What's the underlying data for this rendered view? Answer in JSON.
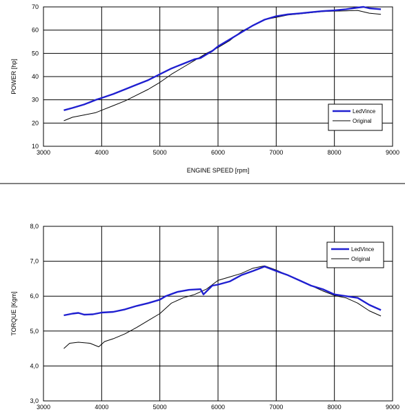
{
  "chart_data": [
    {
      "type": "line",
      "ylabel": "POWER [hp]",
      "xlabel": "ENGINE SPEED [rpm]",
      "xlim": [
        3000,
        9000
      ],
      "ylim": [
        10,
        70
      ],
      "x_ticks": [
        "3000",
        "4000",
        "5000",
        "6000",
        "7000",
        "8000",
        "9000"
      ],
      "y_ticks": [
        "10",
        "20",
        "30",
        "40",
        "50",
        "60",
        "70"
      ],
      "legend_position": "bottom-right",
      "grid": true,
      "series": [
        {
          "name": "LedVince",
          "color": "#1f1fd0",
          "points": [
            [
              3350,
              25.5
            ],
            [
              3500,
              26.5
            ],
            [
              3700,
              28
            ],
            [
              3900,
              30
            ],
            [
              4000,
              30.8
            ],
            [
              4200,
              32.5
            ],
            [
              4400,
              34.5
            ],
            [
              4600,
              36.5
            ],
            [
              4800,
              38.5
            ],
            [
              5000,
              41
            ],
            [
              5200,
              43.5
            ],
            [
              5400,
              45.5
            ],
            [
              5600,
              47.5
            ],
            [
              5700,
              48
            ],
            [
              5800,
              49.5
            ],
            [
              5900,
              51
            ],
            [
              6000,
              53
            ],
            [
              6200,
              56
            ],
            [
              6400,
              59
            ],
            [
              6600,
              62
            ],
            [
              6800,
              64.5
            ],
            [
              7000,
              66
            ],
            [
              7200,
              66.8
            ],
            [
              7400,
              67.2
            ],
            [
              7600,
              67.7
            ],
            [
              7800,
              68.2
            ],
            [
              8000,
              68.5
            ],
            [
              8200,
              69
            ],
            [
              8400,
              69.7
            ],
            [
              8500,
              70
            ],
            [
              8600,
              69.4
            ],
            [
              8800,
              69
            ]
          ]
        },
        {
          "name": "Original",
          "color": "#000000",
          "points": [
            [
              3350,
              21
            ],
            [
              3500,
              22.5
            ],
            [
              3700,
              23.5
            ],
            [
              3900,
              24.5
            ],
            [
              4000,
              25.5
            ],
            [
              4200,
              27.5
            ],
            [
              4400,
              29.5
            ],
            [
              4600,
              32
            ],
            [
              4800,
              34.5
            ],
            [
              5000,
              37.5
            ],
            [
              5200,
              41
            ],
            [
              5400,
              44
            ],
            [
              5600,
              47
            ],
            [
              5800,
              50
            ],
            [
              6000,
              52.5
            ],
            [
              6200,
              55.5
            ],
            [
              6400,
              59.5
            ],
            [
              6600,
              62
            ],
            [
              6800,
              64.5
            ],
            [
              7000,
              65.5
            ],
            [
              7200,
              66.5
            ],
            [
              7400,
              67
            ],
            [
              7600,
              67.5
            ],
            [
              7800,
              68
            ],
            [
              8000,
              68.2
            ],
            [
              8200,
              68.3
            ],
            [
              8400,
              68.5
            ],
            [
              8600,
              67.3
            ],
            [
              8800,
              66.8
            ]
          ]
        }
      ]
    },
    {
      "type": "line",
      "ylabel": "TORQUE [Kgm]",
      "xlabel": "",
      "xlim": [
        3000,
        9000
      ],
      "ylim": [
        3.0,
        8.0
      ],
      "x_ticks": [
        "3000",
        "4000",
        "5000",
        "6000",
        "7000",
        "8000",
        "9000"
      ],
      "y_ticks": [
        "3,0",
        "4,0",
        "5,0",
        "6,0",
        "7,0",
        "8,0"
      ],
      "legend_position": "top-right",
      "grid": true,
      "series": [
        {
          "name": "LedVince",
          "color": "#1f1fd0",
          "points": [
            [
              3350,
              5.45
            ],
            [
              3500,
              5.5
            ],
            [
              3600,
              5.52
            ],
            [
              3700,
              5.47
            ],
            [
              3850,
              5.48
            ],
            [
              4000,
              5.53
            ],
            [
              4200,
              5.55
            ],
            [
              4400,
              5.62
            ],
            [
              4600,
              5.72
            ],
            [
              4800,
              5.8
            ],
            [
              5000,
              5.9
            ],
            [
              5100,
              6.0
            ],
            [
              5300,
              6.12
            ],
            [
              5500,
              6.18
            ],
            [
              5700,
              6.2
            ],
            [
              5750,
              6.05
            ],
            [
              5900,
              6.3
            ],
            [
              6000,
              6.33
            ],
            [
              6200,
              6.42
            ],
            [
              6400,
              6.6
            ],
            [
              6600,
              6.72
            ],
            [
              6800,
              6.85
            ],
            [
              7000,
              6.72
            ],
            [
              7200,
              6.6
            ],
            [
              7400,
              6.45
            ],
            [
              7600,
              6.3
            ],
            [
              7800,
              6.2
            ],
            [
              8000,
              6.05
            ],
            [
              8200,
              6.0
            ],
            [
              8400,
              5.95
            ],
            [
              8600,
              5.75
            ],
            [
              8800,
              5.6
            ]
          ]
        },
        {
          "name": "Original",
          "color": "#000000",
          "points": [
            [
              3350,
              4.5
            ],
            [
              3450,
              4.65
            ],
            [
              3600,
              4.68
            ],
            [
              3800,
              4.65
            ],
            [
              3950,
              4.55
            ],
            [
              4050,
              4.7
            ],
            [
              4200,
              4.78
            ],
            [
              4400,
              4.92
            ],
            [
              4600,
              5.1
            ],
            [
              4800,
              5.3
            ],
            [
              5000,
              5.5
            ],
            [
              5200,
              5.8
            ],
            [
              5400,
              5.95
            ],
            [
              5600,
              6.05
            ],
            [
              5800,
              6.2
            ],
            [
              6000,
              6.45
            ],
            [
              6200,
              6.55
            ],
            [
              6400,
              6.65
            ],
            [
              6600,
              6.8
            ],
            [
              6800,
              6.87
            ],
            [
              7000,
              6.75
            ],
            [
              7200,
              6.6
            ],
            [
              7400,
              6.45
            ],
            [
              7600,
              6.3
            ],
            [
              7800,
              6.15
            ],
            [
              8000,
              6.02
            ],
            [
              8200,
              5.95
            ],
            [
              8400,
              5.8
            ],
            [
              8600,
              5.58
            ],
            [
              8800,
              5.43
            ]
          ]
        }
      ]
    }
  ]
}
